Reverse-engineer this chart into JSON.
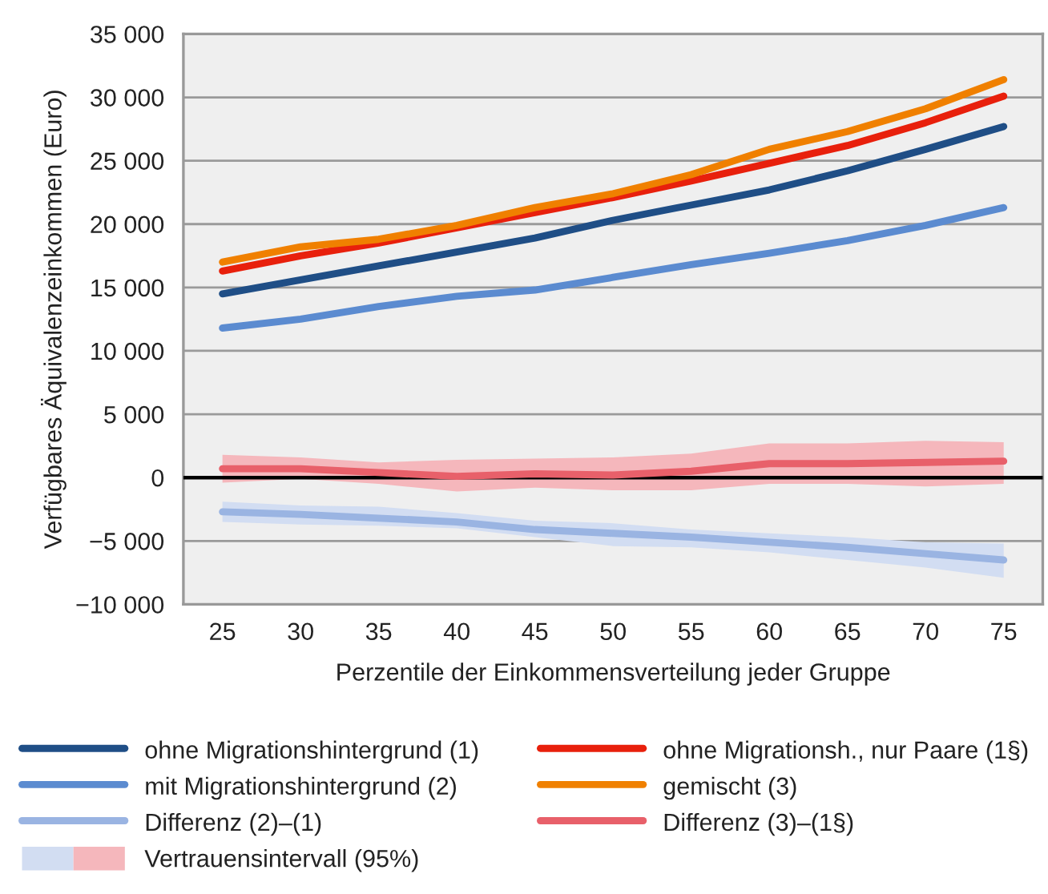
{
  "chart_data": {
    "type": "line",
    "xlabel": "Perzentile der Einkommensverteilung jeder Gruppe",
    "ylabel": "Verfügbares Äquivalenzeinkommen (Euro)",
    "categories": [
      "25",
      "30",
      "35",
      "40",
      "45",
      "50",
      "55",
      "60",
      "65",
      "70",
      "75"
    ],
    "ylim": [
      -10000,
      35000
    ],
    "yticks": [
      {
        "value": -10000,
        "label": "−10 000"
      },
      {
        "value": -5000,
        "label": "−5 000"
      },
      0,
      {
        "value": 5000,
        "label": "5 000"
      },
      {
        "value": 10000,
        "label": "10 000"
      },
      {
        "value": 15000,
        "label": "15 000"
      },
      {
        "value": 20000,
        "label": "20 000"
      },
      {
        "value": 25000,
        "label": "25 000"
      },
      {
        "value": 30000,
        "label": "30 000"
      },
      {
        "value": 35000,
        "label": "35 000"
      }
    ],
    "grid": "y",
    "legend": "bottom",
    "ref_lines": [
      {
        "axis": "y",
        "value": 0,
        "color": "#000000"
      }
    ],
    "annotations": [
      "Vertrauensintervall (95%)"
    ],
    "series": [
      {
        "name": "ohne Migrationshintergrund (1)",
        "color": "#1f4e86",
        "values": [
          14500,
          15600,
          16700,
          17800,
          18900,
          20300,
          21500,
          22700,
          24200,
          25900,
          27700
        ]
      },
      {
        "name": "mit Migrationshintergrund (2)",
        "color": "#5b8bd0",
        "values": [
          11800,
          12500,
          13500,
          14300,
          14800,
          15800,
          16800,
          17700,
          18700,
          19900,
          21300
        ]
      },
      {
        "name": "Differenz (2)–(1)",
        "color": "#9ab4e2",
        "values": [
          -2700,
          -2900,
          -3200,
          -3500,
          -4100,
          -4400,
          -4700,
          -5100,
          -5500,
          -6000,
          -6500
        ],
        "lower": [
          -3500,
          -3700,
          -3800,
          -4000,
          -4700,
          -5400,
          -5500,
          -5900,
          -6500,
          -7100,
          -7900
        ],
        "upper": [
          -1900,
          -2200,
          -2300,
          -2800,
          -3400,
          -3600,
          -4100,
          -4400,
          -4700,
          -5100,
          -5200
        ]
      },
      {
        "name": "ohne Migrationsh., nur Paare (1§)",
        "color": "#e8200c",
        "values": [
          16300,
          17500,
          18500,
          19700,
          20900,
          22100,
          23400,
          24800,
          26200,
          28000,
          30100
        ]
      },
      {
        "name": "gemischt (3)",
        "color": "#f08000",
        "values": [
          17000,
          18200,
          18800,
          19900,
          21300,
          22400,
          23900,
          25900,
          27300,
          29100,
          31400
        ]
      },
      {
        "name": "Differenz (3)–(1§)",
        "color": "#e8606a",
        "values": [
          700,
          700,
          400,
          100,
          300,
          200,
          500,
          1100,
          1100,
          1200,
          1300
        ],
        "lower": [
          -400,
          -100,
          -500,
          -1100,
          -800,
          -1000,
          -1000,
          -500,
          -500,
          -700,
          -500
        ],
        "upper": [
          1800,
          1600,
          1200,
          1400,
          1500,
          1600,
          1900,
          2700,
          2700,
          2900,
          2800
        ]
      }
    ]
  }
}
